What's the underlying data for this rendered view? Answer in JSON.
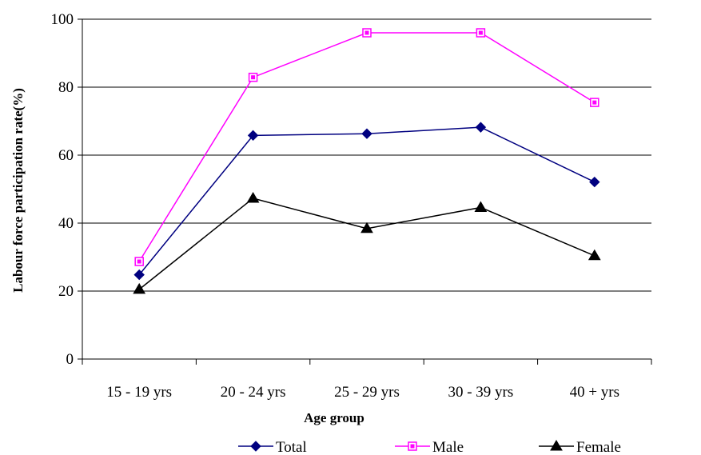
{
  "chart_data": {
    "type": "line",
    "categories": [
      "15 - 19 yrs",
      "20 - 24 yrs",
      "25 - 29 yrs",
      "30 - 39 yrs",
      "40 + yrs"
    ],
    "series": [
      {
        "name": "Total",
        "color": "#000080",
        "marker": "diamond",
        "values": [
          24.8,
          65.8,
          66.3,
          68.2,
          52.1
        ]
      },
      {
        "name": "Male",
        "color": "#ff00ff",
        "marker": "square-hollow",
        "values": [
          28.7,
          82.9,
          96.0,
          96.0,
          75.5
        ]
      },
      {
        "name": "Female",
        "color": "#000000",
        "marker": "triangle",
        "values": [
          20.5,
          47.3,
          38.4,
          44.6,
          30.4
        ]
      }
    ],
    "title": "",
    "xlabel": "Age group",
    "ylabel": "Labour force participation rate(%)",
    "ylim": [
      0,
      100
    ],
    "yticks": [
      "0",
      "20",
      "40",
      "60",
      "80",
      "100"
    ],
    "grid": "horizontal",
    "legend_position": "bottom"
  }
}
